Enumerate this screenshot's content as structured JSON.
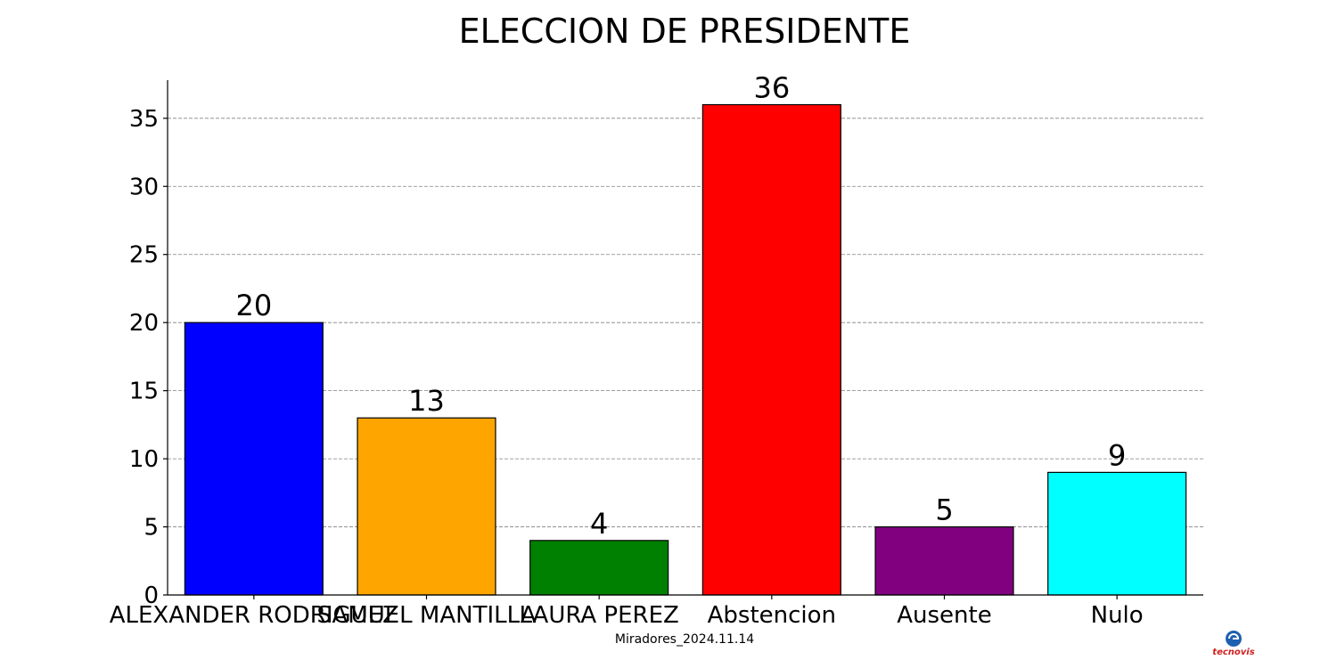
{
  "chart_data": {
    "type": "bar",
    "title": "ELECCION DE PRESIDENTE",
    "categories": [
      "ALEXANDER RODRIGUEZ",
      "SAMUEL MANTILLA",
      "LAURA PEREZ",
      "Abstencion",
      "Ausente",
      "Nulo"
    ],
    "values": [
      20,
      13,
      4,
      36,
      5,
      9
    ],
    "colors": [
      "#0000ff",
      "#ffa500",
      "#008000",
      "#ff0000",
      "#800080",
      "#00ffff"
    ],
    "ylim": [
      0,
      37.8
    ],
    "yticks": [
      0,
      5,
      10,
      15,
      20,
      25,
      30,
      35
    ],
    "grid": "y-dashed",
    "xlabel": "",
    "ylabel": "",
    "caption": "Miradores_2024.11.14"
  },
  "logo": {
    "icon": "tecnovis-logo",
    "text": "tecnovis"
  }
}
